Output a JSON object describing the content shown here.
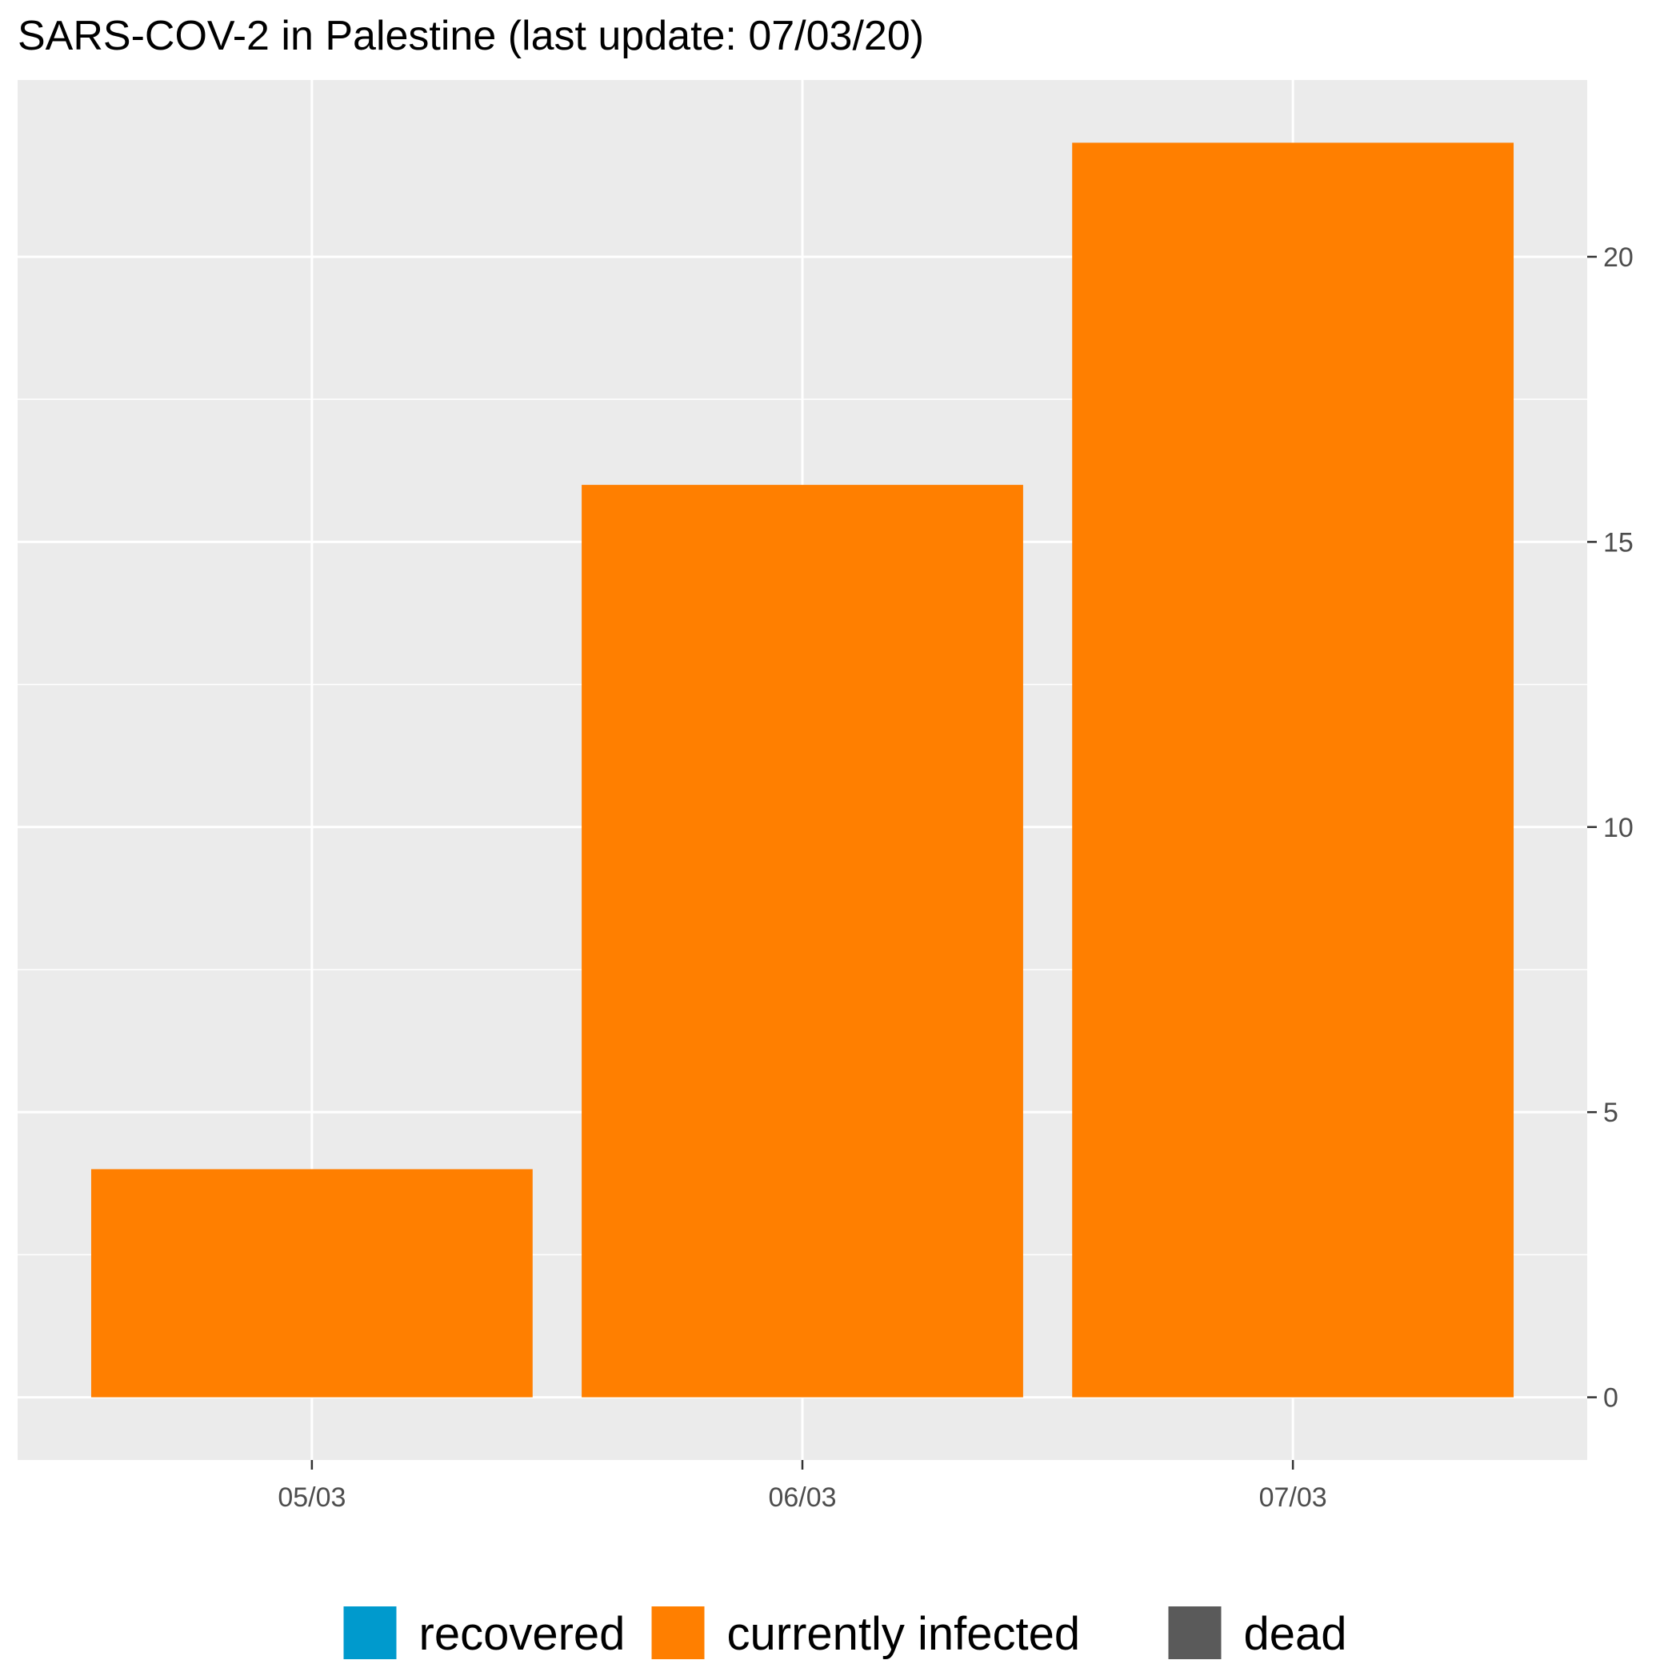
{
  "chart_data": {
    "type": "bar",
    "title": "SARS-COV-2 in Palestine (last update: 07/03/20)",
    "xlabel": "",
    "ylabel": "",
    "categories": [
      "05/03",
      "06/03",
      "07/03"
    ],
    "series": [
      {
        "name": "recovered",
        "color": "#009ACD",
        "values": [
          0,
          0,
          0
        ]
      },
      {
        "name": "currently infected",
        "color": "#FF7F00",
        "values": [
          4,
          16,
          22
        ]
      },
      {
        "name": "dead",
        "color": "#5A5A5A",
        "values": [
          0,
          0,
          0
        ]
      }
    ],
    "stacked": true,
    "ylim": [
      -1.1,
      23.1
    ],
    "yticks": [
      0,
      5,
      10,
      15,
      20
    ],
    "y_axis_position": "right",
    "grid": true,
    "legend_position": "bottom",
    "panel_background": "#EBEBEB",
    "gridline_color": "#FFFFFF"
  }
}
